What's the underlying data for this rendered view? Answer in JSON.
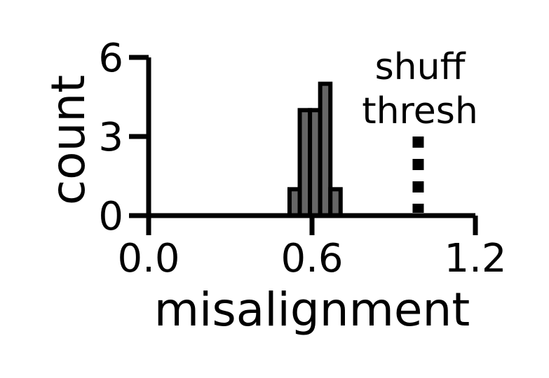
{
  "chart_data": {
    "type": "bar",
    "title": "",
    "xlabel": "misalignment",
    "ylabel": "count",
    "xlim": [
      0.0,
      1.2
    ],
    "ylim": [
      0,
      6
    ],
    "xticks": [
      "0.0",
      "0.6",
      "1.2"
    ],
    "yticks": [
      "0",
      "3",
      "6"
    ],
    "bin_width": 0.0375,
    "bins": [
      {
        "x0": 0.5175,
        "x1": 0.555,
        "count": 1
      },
      {
        "x0": 0.555,
        "x1": 0.5925,
        "count": 4
      },
      {
        "x0": 0.5925,
        "x1": 0.63,
        "count": 4
      },
      {
        "x0": 0.63,
        "x1": 0.6675,
        "count": 5
      },
      {
        "x0": 0.6675,
        "x1": 0.705,
        "count": 1
      }
    ],
    "threshold": {
      "x": 0.99,
      "label_line1": "shuff",
      "label_line2": "thresh",
      "style": "dotted"
    },
    "grid": false,
    "colors": {
      "bar_fill": "#666666",
      "bar_edge": "#000000",
      "axis": "#000000"
    }
  }
}
